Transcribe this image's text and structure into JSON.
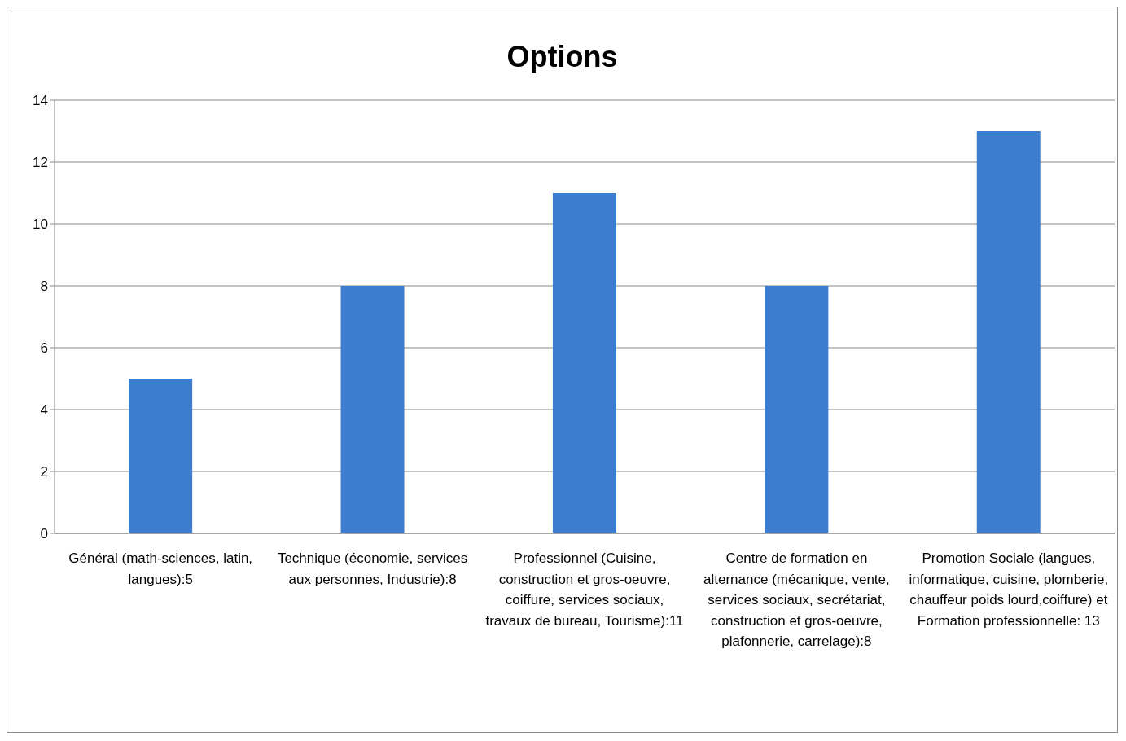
{
  "chart_data": {
    "type": "bar",
    "title": "Options",
    "categories": [
      "Général (math-sciences, latin, langues):5",
      "Technique (économie, services aux personnes, Industrie):8",
      "Professionnel (Cuisine, construction et gros-oeuvre, coiffure, services sociaux, travaux de bureau, Tourisme):11",
      "Centre de formation en alternance (mécanique, vente, services sociaux, secrétariat, construction et gros-oeuvre, plafonnerie, carrelage):8",
      "Promotion Sociale (langues, informatique, cuisine, plomberie, chauffeur poids lourd,coiffure) et Formation professionnelle: 13"
    ],
    "values": [
      5,
      8,
      11,
      8,
      13
    ],
    "color": "#3c7dd0",
    "ylim": [
      0,
      14
    ],
    "yticks": [
      0,
      2,
      4,
      6,
      8,
      10,
      12,
      14
    ],
    "grid": "y"
  }
}
